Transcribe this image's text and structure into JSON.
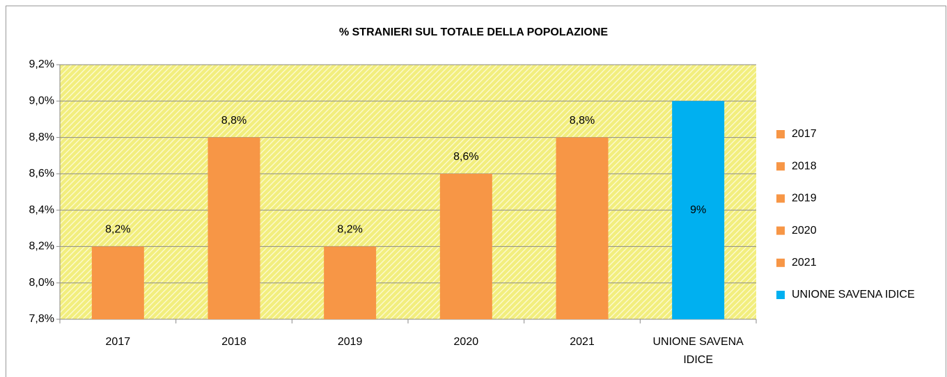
{
  "chart_data": {
    "type": "bar",
    "title": "% STRANIERI SUL TOTALE DELLA POPOLAZIONE",
    "categories": [
      "2017",
      "2018",
      "2019",
      "2020",
      "2021",
      "UNIONE SAVENA IDICE"
    ],
    "values": [
      8.2,
      8.8,
      8.2,
      8.6,
      8.8,
      9.0
    ],
    "value_labels": [
      "8,2%",
      "8,8%",
      "8,2%",
      "8,6%",
      "8,8%",
      "9%"
    ],
    "colors": [
      "#f79646",
      "#f79646",
      "#f79646",
      "#f79646",
      "#f79646",
      "#00b0f0"
    ],
    "ylim": [
      7.8,
      9.2
    ],
    "yticks": [
      {
        "value": 7.8,
        "label": "7,8%"
      },
      {
        "value": 8.0,
        "label": "8,0%"
      },
      {
        "value": 8.2,
        "label": "8,2%"
      },
      {
        "value": 8.4,
        "label": "8,4%"
      },
      {
        "value": 8.6,
        "label": "8,6%"
      },
      {
        "value": 8.8,
        "label": "8,8%"
      },
      {
        "value": 9.0,
        "label": "9,0%"
      },
      {
        "value": 9.2,
        "label": "9,2%"
      }
    ],
    "grid": true,
    "legend": "right"
  }
}
